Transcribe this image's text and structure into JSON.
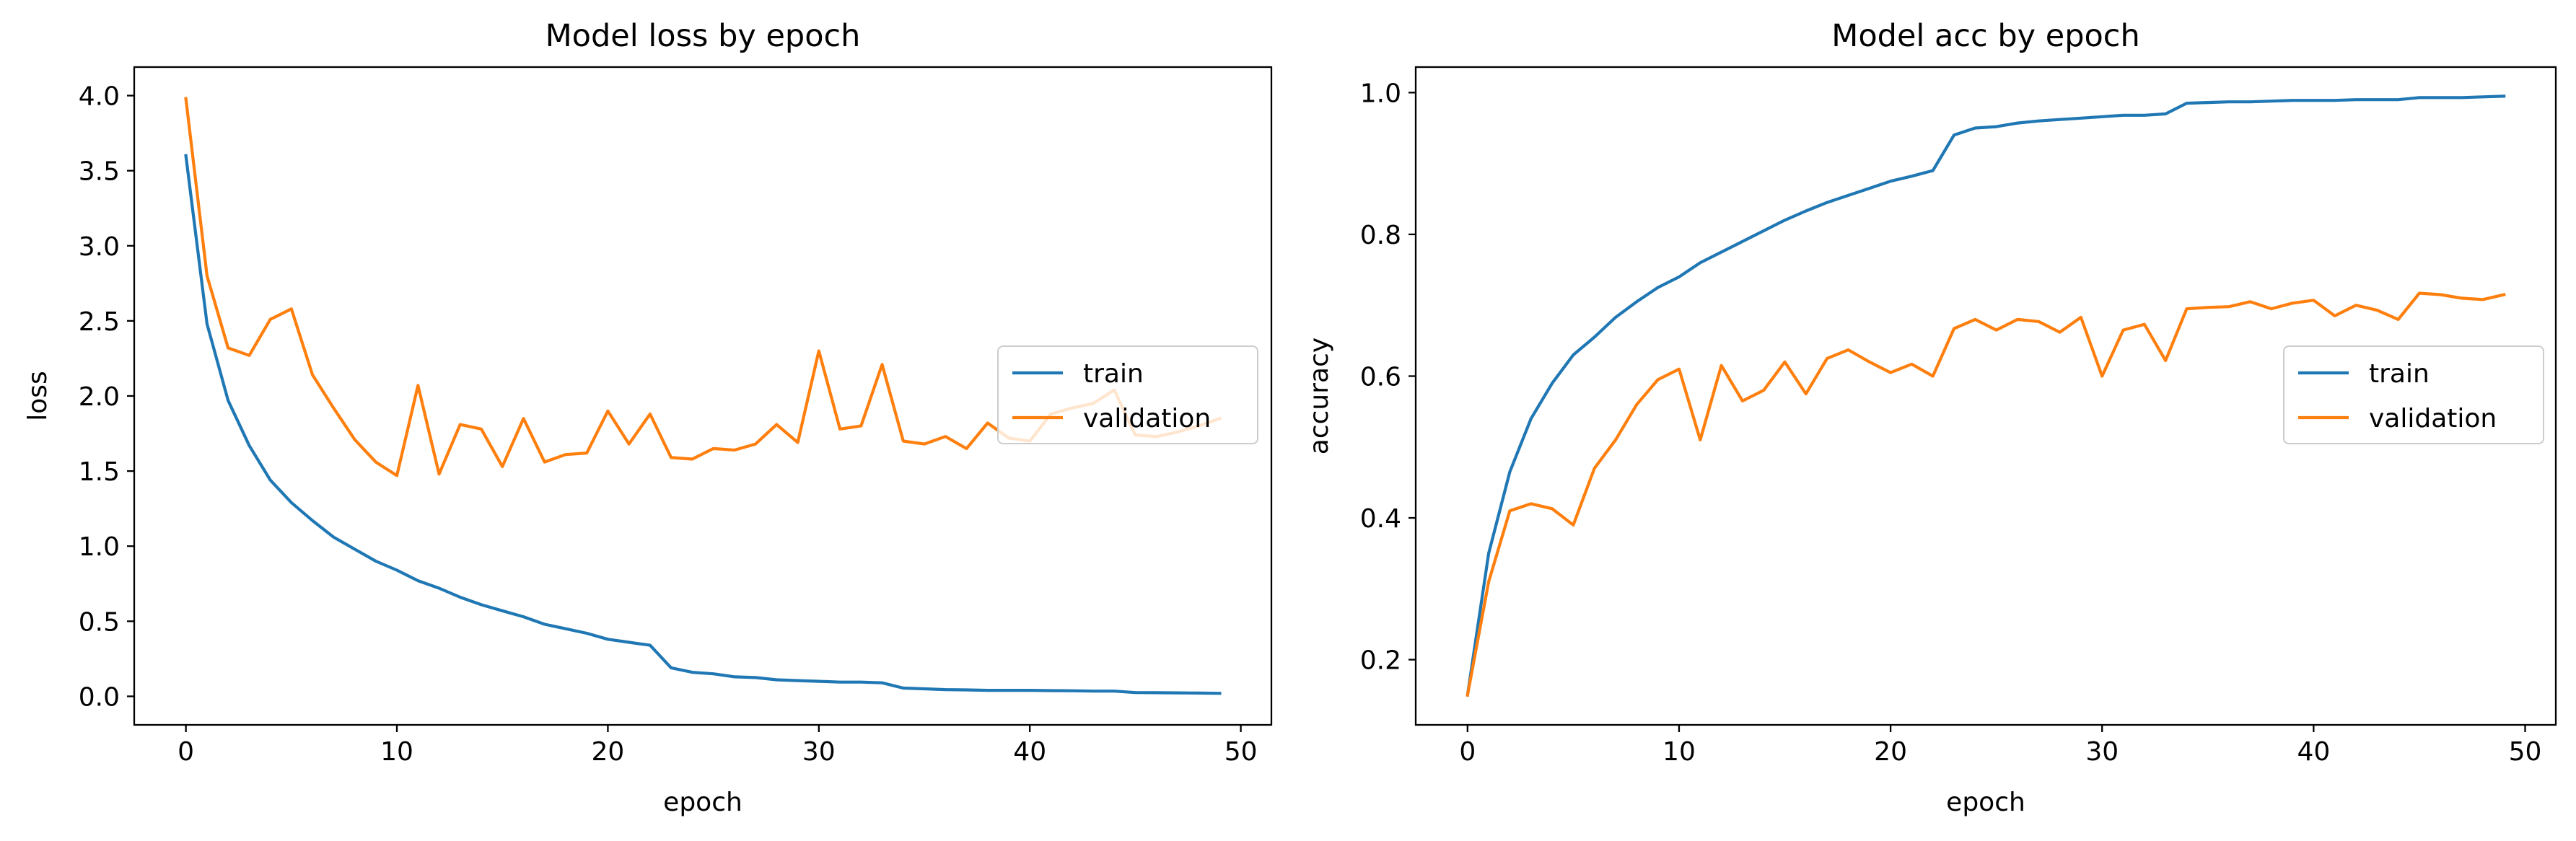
{
  "chart_data": [
    {
      "type": "line",
      "title": "Model loss by epoch",
      "xlabel": "epoch",
      "ylabel": "loss",
      "xlim": [
        -2.45,
        51.45
      ],
      "ylim": [
        -0.19,
        4.19
      ],
      "xticks": [
        0,
        10,
        20,
        30,
        40,
        50
      ],
      "yticks": [
        0.0,
        0.5,
        1.0,
        1.5,
        2.0,
        2.5,
        3.0,
        3.5,
        4.0
      ],
      "ytick_labels": [
        "0.0",
        "0.5",
        "1.0",
        "1.5",
        "2.0",
        "2.5",
        "3.0",
        "3.5",
        "4.0"
      ],
      "legend_position": "center-right",
      "grid": false,
      "series": [
        {
          "name": "train",
          "color": "#1f77b4",
          "values": [
            3.6,
            2.48,
            1.97,
            1.67,
            1.44,
            1.29,
            1.17,
            1.06,
            0.98,
            0.9,
            0.84,
            0.77,
            0.72,
            0.66,
            0.61,
            0.57,
            0.53,
            0.48,
            0.45,
            0.42,
            0.38,
            0.36,
            0.34,
            0.19,
            0.16,
            0.15,
            0.13,
            0.125,
            0.11,
            0.105,
            0.1,
            0.095,
            0.095,
            0.09,
            0.055,
            0.05,
            0.045,
            0.043,
            0.04,
            0.04,
            0.04,
            0.038,
            0.037,
            0.035,
            0.035,
            0.025,
            0.024,
            0.023,
            0.022,
            0.02
          ]
        },
        {
          "name": "validation",
          "color": "#ff7f0e",
          "values": [
            3.98,
            2.8,
            2.32,
            2.27,
            2.51,
            2.58,
            2.14,
            1.92,
            1.71,
            1.56,
            1.47,
            2.07,
            1.48,
            1.81,
            1.78,
            1.53,
            1.85,
            1.56,
            1.61,
            1.62,
            1.9,
            1.68,
            1.88,
            1.59,
            1.58,
            1.65,
            1.64,
            1.68,
            1.81,
            1.69,
            2.3,
            1.78,
            1.8,
            2.21,
            1.7,
            1.68,
            1.73,
            1.65,
            1.82,
            1.72,
            1.7,
            1.88,
            1.92,
            1.95,
            2.04,
            1.74,
            1.73,
            1.76,
            1.8,
            1.85
          ]
        }
      ]
    },
    {
      "type": "line",
      "title": "Model acc by epoch",
      "xlabel": "epoch",
      "ylabel": "accuracy",
      "xlim": [
        -2.45,
        51.45
      ],
      "ylim": [
        0.108,
        1.036
      ],
      "xticks": [
        0,
        10,
        20,
        30,
        40,
        50
      ],
      "yticks": [
        0.2,
        0.4,
        0.6,
        0.8,
        1.0
      ],
      "ytick_labels": [
        "0.2",
        "0.4",
        "0.6",
        "0.8",
        "1.0"
      ],
      "legend_position": "center-right",
      "grid": false,
      "series": [
        {
          "name": "train",
          "color": "#1f77b4",
          "values": [
            0.15,
            0.35,
            0.465,
            0.54,
            0.59,
            0.63,
            0.655,
            0.683,
            0.705,
            0.725,
            0.74,
            0.76,
            0.775,
            0.79,
            0.805,
            0.82,
            0.833,
            0.845,
            0.855,
            0.865,
            0.875,
            0.882,
            0.89,
            0.94,
            0.95,
            0.952,
            0.957,
            0.96,
            0.962,
            0.964,
            0.966,
            0.968,
            0.968,
            0.97,
            0.985,
            0.986,
            0.987,
            0.987,
            0.988,
            0.989,
            0.989,
            0.989,
            0.99,
            0.99,
            0.99,
            0.993,
            0.993,
            0.993,
            0.994,
            0.995
          ]
        },
        {
          "name": "validation",
          "color": "#ff7f0e",
          "values": [
            0.15,
            0.31,
            0.41,
            0.42,
            0.413,
            0.39,
            0.47,
            0.51,
            0.56,
            0.595,
            0.61,
            0.51,
            0.615,
            0.565,
            0.58,
            0.62,
            0.575,
            0.625,
            0.637,
            0.62,
            0.605,
            0.617,
            0.6,
            0.667,
            0.68,
            0.665,
            0.68,
            0.677,
            0.662,
            0.683,
            0.6,
            0.665,
            0.673,
            0.622,
            0.695,
            0.697,
            0.698,
            0.705,
            0.695,
            0.703,
            0.707,
            0.685,
            0.7,
            0.693,
            0.68,
            0.717,
            0.715,
            0.71,
            0.708,
            0.715
          ]
        }
      ]
    }
  ]
}
